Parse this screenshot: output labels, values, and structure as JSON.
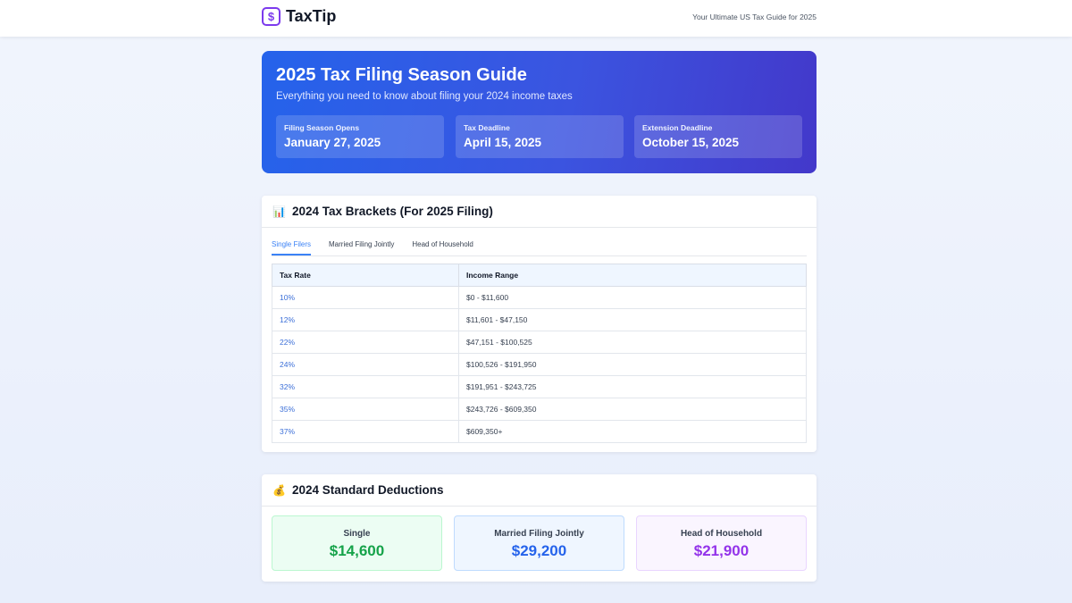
{
  "header": {
    "brand": "TaxTip",
    "logo_glyph": "$",
    "tagline": "Your Ultimate US Tax Guide for 2025"
  },
  "hero": {
    "title": "2025 Tax Filing Season Guide",
    "subtitle": "Everything you need to know about filing your 2024 income taxes",
    "dates": [
      {
        "label": "Filing Season Opens",
        "value": "January 27, 2025"
      },
      {
        "label": "Tax Deadline",
        "value": "April 15, 2025"
      },
      {
        "label": "Extension Deadline",
        "value": "October 15, 2025"
      }
    ]
  },
  "brackets": {
    "icon": "📊",
    "title": "2024 Tax Brackets (For 2025 Filing)",
    "tabs": [
      "Single Filers",
      "Married Filing Jointly",
      "Head of Household"
    ],
    "active_tab": 0,
    "columns": [
      "Tax Rate",
      "Income Range"
    ],
    "rows": [
      {
        "rate": "10%",
        "range": "$0 - $11,600"
      },
      {
        "rate": "12%",
        "range": "$11,601 - $47,150"
      },
      {
        "rate": "22%",
        "range": "$47,151 - $100,525"
      },
      {
        "rate": "24%",
        "range": "$100,526 - $191,950"
      },
      {
        "rate": "32%",
        "range": "$191,951 - $243,725"
      },
      {
        "rate": "35%",
        "range": "$243,726 - $609,350"
      },
      {
        "rate": "37%",
        "range": "$609,350+"
      }
    ]
  },
  "deductions": {
    "icon": "💰",
    "title": "2024 Standard Deductions",
    "items": [
      {
        "label": "Single",
        "value": "$14,600",
        "color": "#16a34a",
        "bg": "#ecfdf3",
        "border": "#bbf7d0"
      },
      {
        "label": "Married Filing Jointly",
        "value": "$29,200",
        "color": "#2563eb",
        "bg": "#eff6ff",
        "border": "#bfdbfe"
      },
      {
        "label": "Head of Household",
        "value": "$21,900",
        "color": "#9333ea",
        "bg": "#faf5ff",
        "border": "#e9d5ff"
      }
    ]
  }
}
